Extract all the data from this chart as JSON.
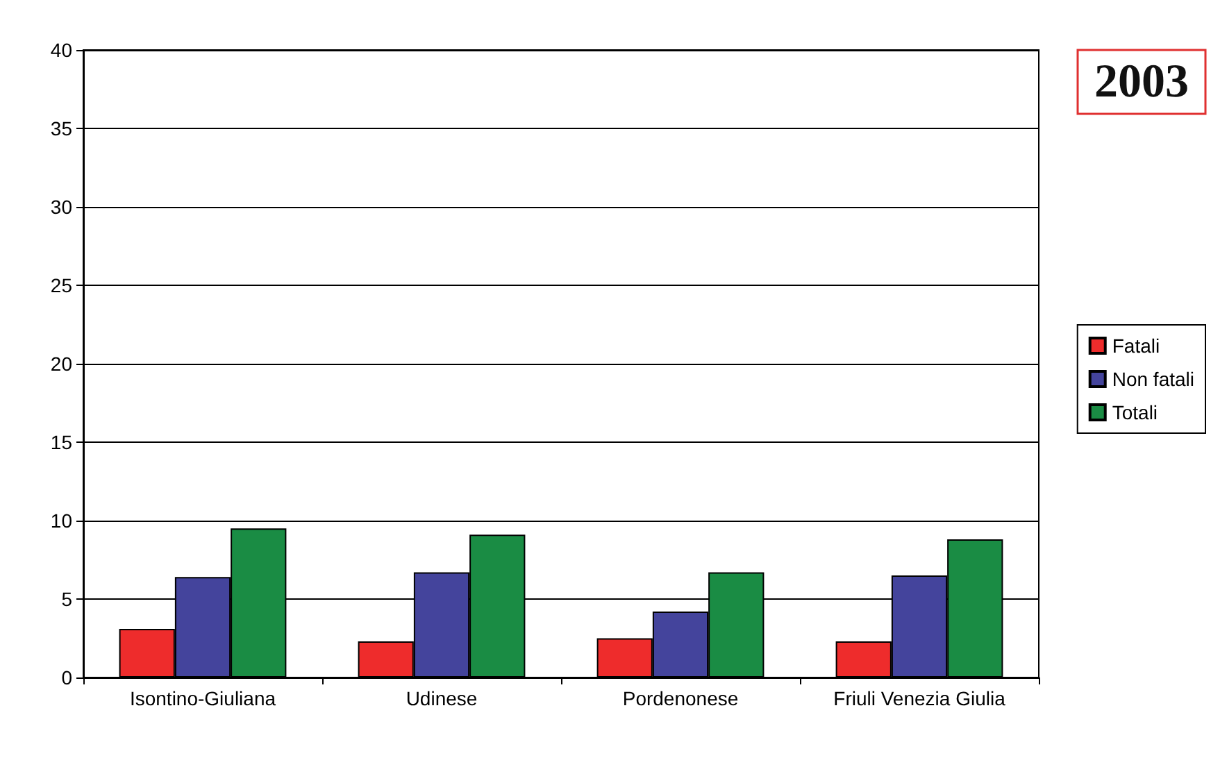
{
  "chart_data": {
    "type": "bar",
    "title": "2003",
    "categories": [
      "Isontino-Giuliana",
      "Udinese",
      "Pordenonese",
      "Friuli Venezia Giulia"
    ],
    "series": [
      {
        "name": "Fatali",
        "color": "#ee2c2c",
        "values": [
          3.1,
          2.3,
          2.5,
          2.3
        ]
      },
      {
        "name": "Non fatali",
        "color": "#44449c",
        "values": [
          6.4,
          6.7,
          4.2,
          6.5
        ]
      },
      {
        "name": "Totali",
        "color": "#1a8c44",
        "values": [
          9.5,
          9.1,
          6.7,
          8.8
        ]
      }
    ],
    "ylim": [
      0,
      40
    ],
    "yticks": [
      0,
      5,
      10,
      15,
      20,
      25,
      30,
      35,
      40
    ],
    "grid": "y",
    "legend": "right"
  }
}
